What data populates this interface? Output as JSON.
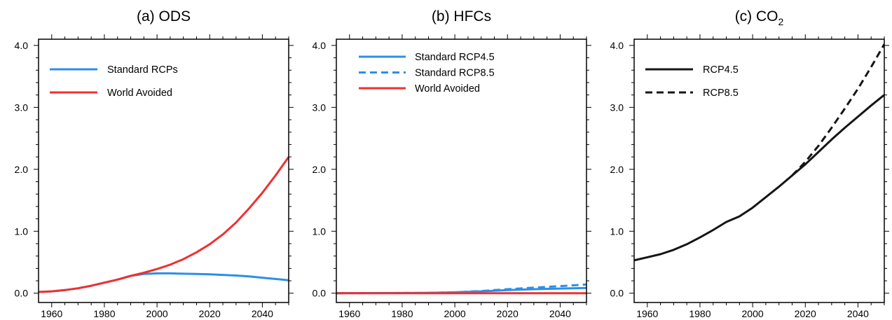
{
  "colors": {
    "blue": "#2b8fe8",
    "red": "#f03030",
    "black": "#151515"
  },
  "chart_data": [
    {
      "type": "line",
      "title": "(a) ODS",
      "title_sub": "",
      "xlim": [
        1955,
        2050
      ],
      "ylim": [
        -0.15,
        4.1
      ],
      "xticks": [
        1960,
        1980,
        2000,
        2020,
        2040
      ],
      "yticks": [
        "0.0",
        "1.0",
        "2.0",
        "3.0",
        "4.0"
      ],
      "legend_position": "top-left",
      "grid": false,
      "series": [
        {
          "name": "Standard RCPs",
          "color": "blue",
          "dash": false,
          "x": [
            1955,
            1960,
            1965,
            1970,
            1975,
            1980,
            1985,
            1990,
            1995,
            2000,
            2005,
            2010,
            2015,
            2020,
            2025,
            2030,
            2035,
            2040,
            2045,
            2050
          ],
          "y": [
            0.02,
            0.03,
            0.05,
            0.08,
            0.12,
            0.17,
            0.22,
            0.28,
            0.31,
            0.32,
            0.32,
            0.315,
            0.31,
            0.305,
            0.295,
            0.285,
            0.27,
            0.25,
            0.23,
            0.21
          ]
        },
        {
          "name": "World Avoided",
          "color": "red",
          "dash": false,
          "x": [
            1955,
            1960,
            1965,
            1970,
            1975,
            1980,
            1985,
            1990,
            1995,
            2000,
            2005,
            2010,
            2015,
            2020,
            2025,
            2030,
            2035,
            2040,
            2045,
            2050
          ],
          "y": [
            0.02,
            0.03,
            0.05,
            0.08,
            0.12,
            0.17,
            0.22,
            0.28,
            0.33,
            0.39,
            0.46,
            0.55,
            0.66,
            0.79,
            0.95,
            1.14,
            1.37,
            1.62,
            1.9,
            2.2
          ]
        }
      ]
    },
    {
      "type": "line",
      "title": "(b) HFCs",
      "title_sub": "",
      "xlim": [
        1955,
        2050
      ],
      "ylim": [
        -0.15,
        4.1
      ],
      "xticks": [
        1960,
        1980,
        2000,
        2020,
        2040
      ],
      "yticks": [
        "0.0",
        "1.0",
        "2.0",
        "3.0",
        "4.0"
      ],
      "legend_position": "top-left",
      "grid": false,
      "series": [
        {
          "name": "Standard RCP4.5",
          "color": "blue",
          "dash": false,
          "x": [
            1955,
            1990,
            2000,
            2010,
            2020,
            2030,
            2040,
            2050
          ],
          "y": [
            0.0,
            0.005,
            0.015,
            0.03,
            0.05,
            0.065,
            0.075,
            0.085
          ]
        },
        {
          "name": "Standard RCP8.5",
          "color": "blue",
          "dash": true,
          "x": [
            1955,
            1990,
            2000,
            2010,
            2020,
            2030,
            2040,
            2050
          ],
          "y": [
            0.0,
            0.005,
            0.015,
            0.035,
            0.065,
            0.09,
            0.115,
            0.14
          ]
        },
        {
          "name": "World Avoided",
          "color": "red",
          "dash": false,
          "x": [
            1955,
            2050
          ],
          "y": [
            0.0,
            0.0
          ]
        }
      ]
    },
    {
      "type": "line",
      "title": "(c) CO",
      "title_sub": "2",
      "xlim": [
        1955,
        2050
      ],
      "ylim": [
        -0.15,
        4.1
      ],
      "xticks": [
        1960,
        1980,
        2000,
        2020,
        2040
      ],
      "yticks": [
        "0.0",
        "1.0",
        "2.0",
        "3.0",
        "4.0"
      ],
      "legend_position": "top-left",
      "grid": false,
      "series": [
        {
          "name": "RCP4.5",
          "color": "black",
          "dash": false,
          "x": [
            1955,
            1960,
            1965,
            1970,
            1975,
            1980,
            1985,
            1990,
            1995,
            2000,
            2005,
            2010,
            2015,
            2020,
            2025,
            2030,
            2035,
            2040,
            2045,
            2050
          ],
          "y": [
            0.53,
            0.58,
            0.63,
            0.7,
            0.79,
            0.9,
            1.02,
            1.15,
            1.24,
            1.38,
            1.55,
            1.72,
            1.9,
            2.08,
            2.28,
            2.48,
            2.67,
            2.85,
            3.03,
            3.2
          ]
        },
        {
          "name": "RCP8.5",
          "color": "black",
          "dash": true,
          "x": [
            2015,
            2020,
            2025,
            2030,
            2035,
            2040,
            2045,
            2050
          ],
          "y": [
            1.9,
            2.12,
            2.38,
            2.67,
            2.98,
            3.3,
            3.65,
            4.02
          ]
        }
      ]
    }
  ]
}
